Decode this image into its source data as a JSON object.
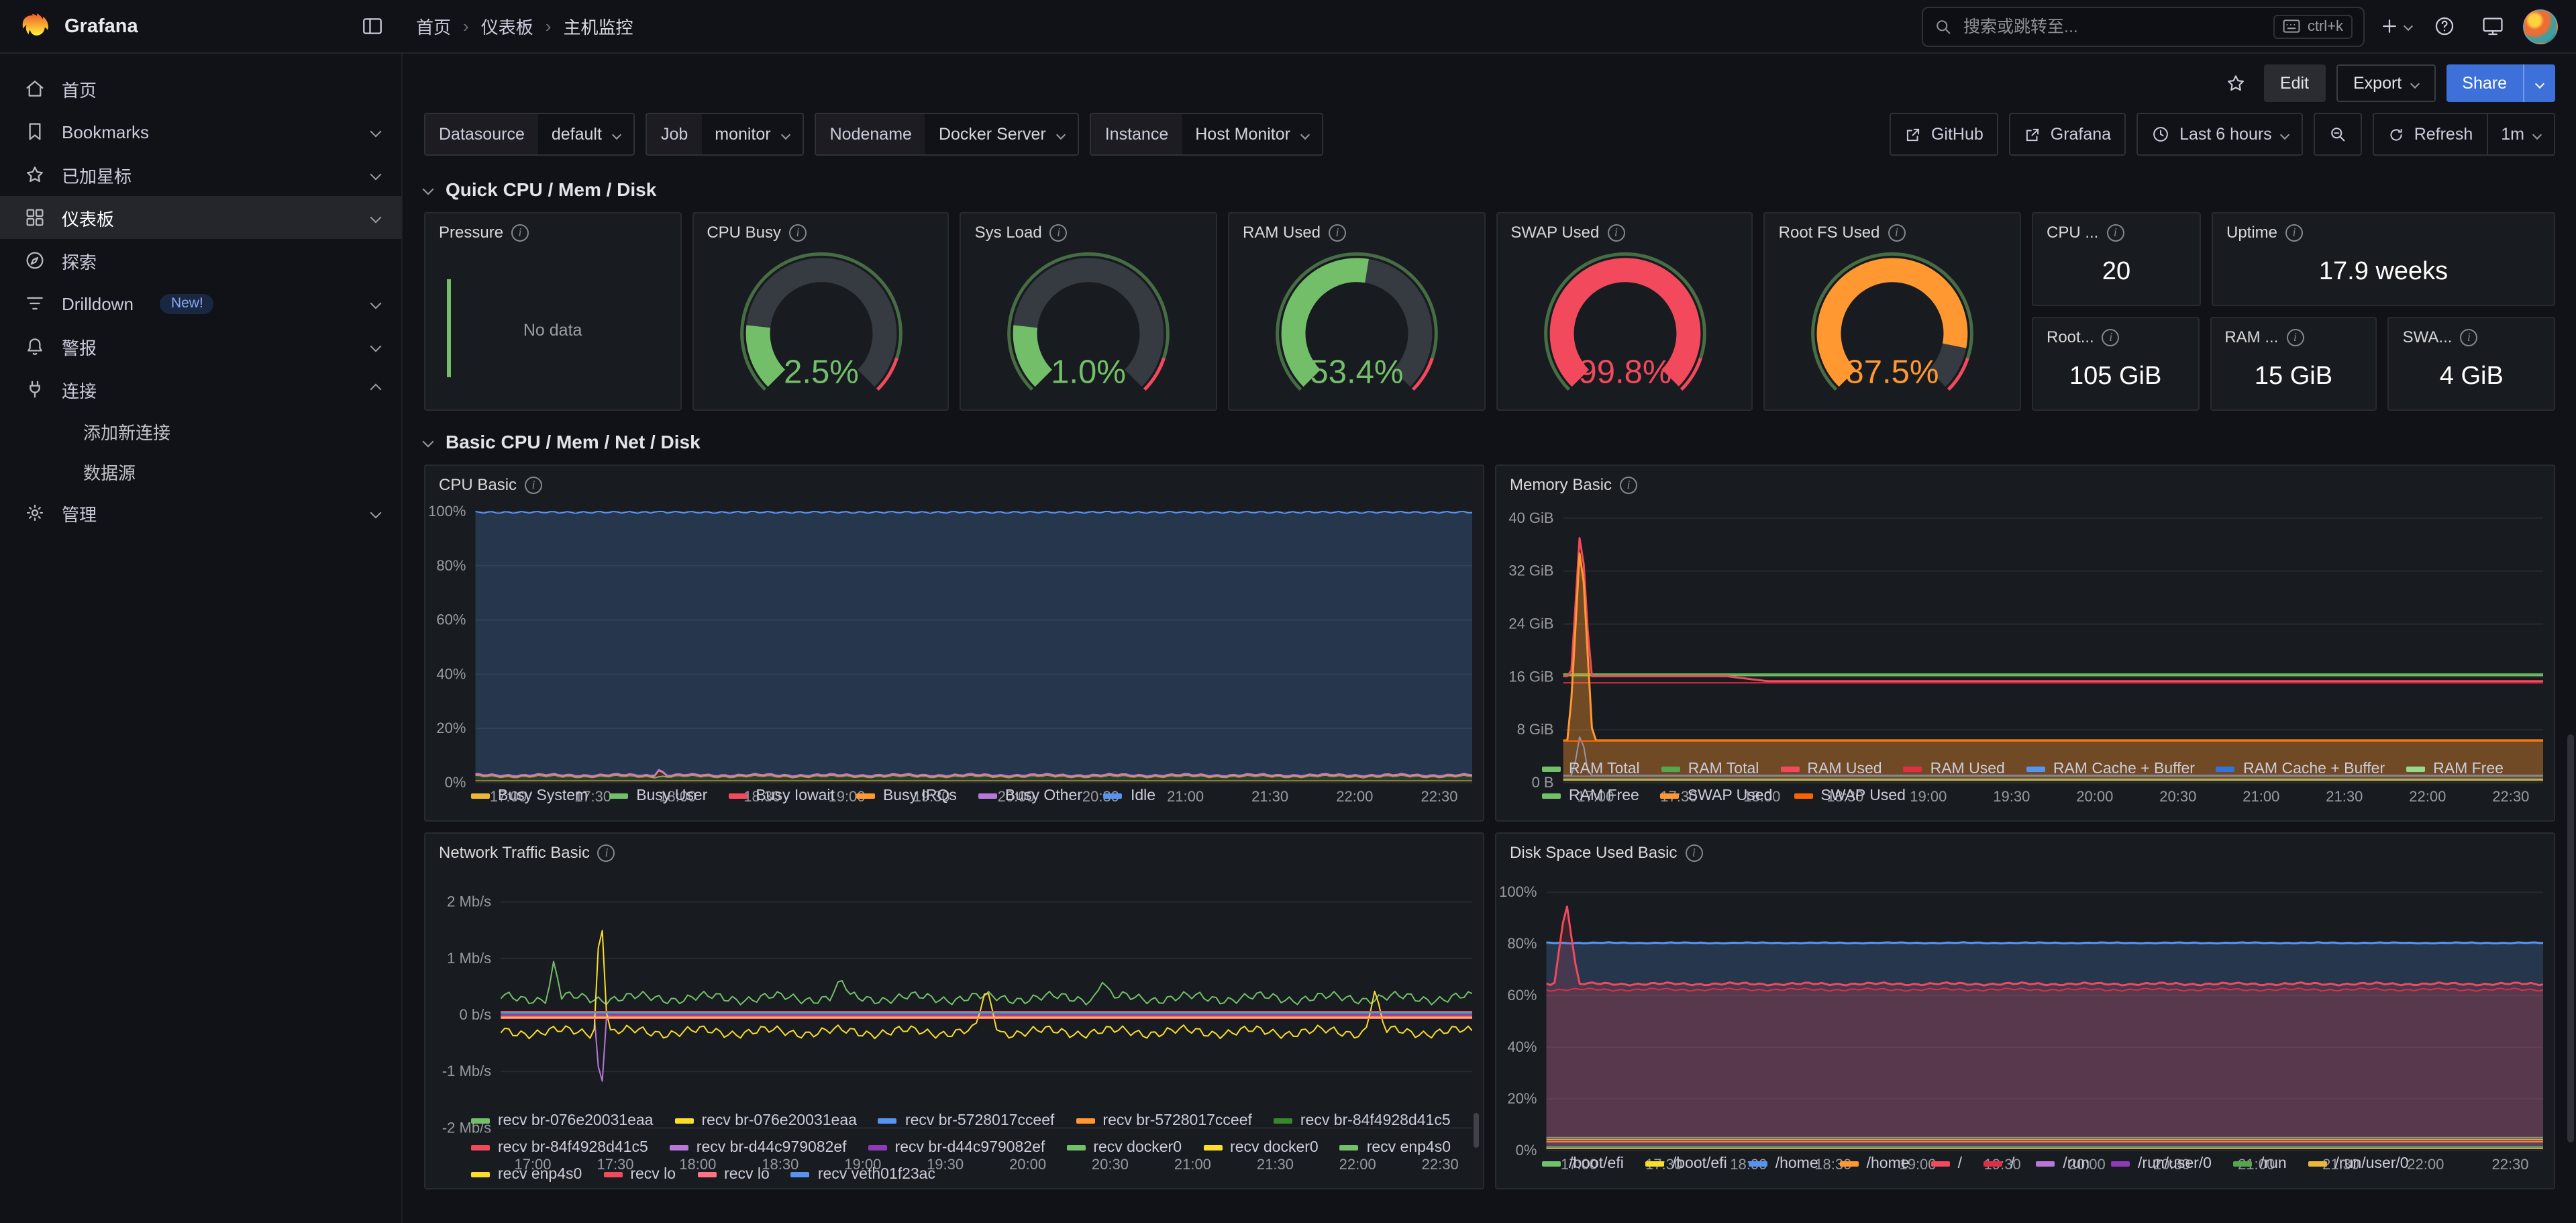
{
  "colors": {
    "primary": "#3D71D9",
    "bg": "#111217",
    "panel": "#181b1f",
    "text": "#ccccdc",
    "green": "#73BF69",
    "red": "#F2495C",
    "orange": "#FF9830",
    "blue": "#5794F2",
    "yellow": "#FADE2A",
    "purple": "#B877D9"
  },
  "topnav": {
    "brand": "Grafana",
    "breadcrumbs": [
      "首页",
      "仪表板",
      "主机监控"
    ],
    "search": {
      "placeholder": "搜索或跳转至...",
      "shortcut": "ctrl+k"
    }
  },
  "sidebar": {
    "items": [
      {
        "label": "首页"
      },
      {
        "label": "Bookmarks"
      },
      {
        "label": "已加星标"
      },
      {
        "label": "仪表板"
      },
      {
        "label": "探索"
      },
      {
        "label": "Drilldown",
        "badge": "New!"
      },
      {
        "label": "警报"
      },
      {
        "label": "连接",
        "children": [
          {
            "label": "添加新连接"
          },
          {
            "label": "数据源"
          }
        ]
      },
      {
        "label": "管理"
      }
    ]
  },
  "page": {
    "edit_label": "Edit",
    "export_label": "Export",
    "share_label": "Share"
  },
  "controls": {
    "variables": [
      {
        "label": "Datasource",
        "value": "default"
      },
      {
        "label": "Job",
        "value": "monitor"
      },
      {
        "label": "Nodename",
        "value": "Docker Server"
      },
      {
        "label": "Instance",
        "value": "Host Monitor"
      }
    ],
    "link_github": "GitHub",
    "link_grafana": "Grafana",
    "time_range": "Last 6 hours",
    "refresh_label": "Refresh",
    "refresh_interval": "1m"
  },
  "rows": [
    {
      "title": "Quick CPU / Mem / Disk"
    },
    {
      "title": "Basic CPU / Mem / Net / Disk"
    }
  ],
  "quick": {
    "pressure": {
      "title": "Pressure",
      "no_data": "No data"
    },
    "gauges": [
      {
        "title": "CPU Busy",
        "value": "2.5%",
        "pct": 2.5,
        "color": "#73BF69"
      },
      {
        "title": "Sys Load",
        "value": "1.0%",
        "pct": 1.0,
        "color": "#73BF69"
      },
      {
        "title": "RAM Used",
        "value": "53.4%",
        "pct": 53.4,
        "color": "#73BF69"
      },
      {
        "title": "SWAP Used",
        "value": "99.8%",
        "pct": 99.8,
        "color": "#F2495C"
      },
      {
        "title": "Root FS Used",
        "value": "87.5%",
        "pct": 87.5,
        "color": "#FF9830"
      }
    ],
    "stats": [
      {
        "title": "CPU ...",
        "value": "20"
      },
      {
        "title": "Uptime",
        "value": "17.9 weeks"
      },
      {
        "title": "Root...",
        "value": "105 GiB"
      },
      {
        "title": "RAM ...",
        "value": "15 GiB"
      },
      {
        "title": "SWA...",
        "value": "4 GiB"
      }
    ]
  },
  "chart_data": [
    {
      "id": "cpu-basic",
      "title": "CPU Basic",
      "type": "area",
      "stacked": true,
      "y_min": 0,
      "y_max": 100,
      "fill": 0.22,
      "y_ticks": [
        {
          "v": 0,
          "l": "0%"
        },
        {
          "v": 20,
          "l": "20%"
        },
        {
          "v": 40,
          "l": "40%"
        },
        {
          "v": 60,
          "l": "60%"
        },
        {
          "v": 80,
          "l": "80%"
        },
        {
          "v": 100,
          "l": "100%"
        }
      ],
      "x_ticks": [
        "17:00",
        "17:30",
        "18:00",
        "18:30",
        "19:00",
        "19:30",
        "20:00",
        "20:30",
        "21:00",
        "21:30",
        "22:00",
        "22:30"
      ],
      "series": [
        {
          "name": "Busy System",
          "color": "#EAB839",
          "const": 0.6
        },
        {
          "name": "Busy User",
          "color": "#73BF69",
          "const": 1.7,
          "noise": 0.5
        },
        {
          "name": "Busy Iowait",
          "color": "#F2495C",
          "const": 0.2,
          "spikes": [
            {
              "at": 0.185,
              "v": 2.6,
              "w": 0.006
            }
          ]
        },
        {
          "name": "Busy IRQs",
          "color": "#FF9830",
          "const": 0.15
        },
        {
          "name": "Busy Other",
          "color": "#B877D9",
          "const": 0.25
        },
        {
          "name": "Idle",
          "color": "#5794F2",
          "const": 96.8,
          "noise": 0.4
        }
      ]
    },
    {
      "id": "memory-basic",
      "title": "Memory Basic",
      "type": "line",
      "y_min": 0,
      "y_max": 41,
      "y_ticks": [
        {
          "v": 0,
          "l": "0 B"
        },
        {
          "v": 8,
          "l": "8 GiB"
        },
        {
          "v": 16,
          "l": "16 GiB"
        },
        {
          "v": 24,
          "l": "24 GiB"
        },
        {
          "v": 32,
          "l": "32 GiB"
        },
        {
          "v": 40,
          "l": "40 GiB"
        }
      ],
      "x_ticks": [
        "17:00",
        "17:30",
        "18:00",
        "18:30",
        "19:00",
        "19:30",
        "20:00",
        "20:30",
        "21:00",
        "21:30",
        "22:00",
        "22:30"
      ],
      "series": [
        {
          "name": "RAM Total",
          "color": "#73BF69",
          "width": 2,
          "const": 16.3
        },
        {
          "name": "RAM Total",
          "color": "#56A64B",
          "const": 16.45
        },
        {
          "name": "RAM Used",
          "color": "#F2495C",
          "width": 1.5,
          "values": [
            16.1,
            16.1,
            16.1,
            16.1,
            16.1,
            15.35,
            15.35,
            15.35,
            15.35,
            15.35,
            15.35,
            15.35,
            15.35,
            15.35,
            15.35,
            15.35,
            15.35,
            15.35,
            15.35,
            15.35,
            15.35,
            15.35,
            15.35,
            15.35,
            15.35
          ],
          "spikes": [
            {
              "at": 0.018,
              "v": 40,
              "w": 0.01
            }
          ]
        },
        {
          "name": "RAM Used",
          "color": "#E02F44",
          "const": 15.1
        },
        {
          "name": "RAM Cache + Buffer",
          "color": "#5794F2",
          "const": 1.1,
          "spikes": [
            {
              "at": 0.018,
              "v": 8,
              "w": 0.008
            }
          ]
        },
        {
          "name": "RAM Cache + Buffer",
          "color": "#3274D9",
          "const": 1.0
        },
        {
          "name": "RAM Free",
          "color": "#96D98D",
          "const": 0.5
        },
        {
          "name": "RAM Free",
          "color": "#73BF69",
          "const": 0.4
        },
        {
          "name": "SWAP Used",
          "color": "#FF9830",
          "width": 1.5,
          "fill": 0.38,
          "const": 6.4,
          "spikes": [
            {
              "at": 0.018,
              "v": 38,
              "w": 0.012
            }
          ]
        },
        {
          "name": "SWAP Used",
          "color": "#FA6400",
          "const": 6.3
        }
      ]
    },
    {
      "id": "network-basic",
      "title": "Network Traffic Basic",
      "type": "line",
      "y_min": -2.4,
      "y_max": 2.4,
      "y_ticks": [
        {
          "v": -2,
          "l": "-2 Mb/s"
        },
        {
          "v": -1,
          "l": "-1 Mb/s"
        },
        {
          "v": 0,
          "l": "0 b/s"
        },
        {
          "v": 1,
          "l": "1 Mb/s"
        },
        {
          "v": 2,
          "l": "2 Mb/s"
        }
      ],
      "x_ticks": [
        "17:00",
        "17:30",
        "18:00",
        "18:30",
        "19:00",
        "19:30",
        "20:00",
        "20:30",
        "21:00",
        "21:30",
        "22:00",
        "22:30"
      ],
      "series": [
        {
          "name": "recv br-076e20031eaa",
          "color": "#73BF69",
          "const": 0.03
        },
        {
          "name": "recv br-076e20031eaa",
          "color": "#FADE2A",
          "const": -0.03
        },
        {
          "name": "recv br-5728017cceef",
          "color": "#5794F2",
          "const": 0.02
        },
        {
          "name": "recv br-5728017cceef",
          "color": "#FF9830",
          "const": -0.02
        },
        {
          "name": "recv br-84f4928d41c5",
          "color": "#37872D",
          "const": 0.02
        },
        {
          "name": "recv br-84f4928d41c5",
          "color": "#F2495C",
          "const": -0.02
        },
        {
          "name": "recv br-d44c979082ef",
          "color": "#B877D9",
          "const": 0,
          "spikes": [
            {
              "at": 0.103,
              "v": -1.6,
              "w": 0.006
            }
          ]
        },
        {
          "name": "recv br-d44c979082ef",
          "color": "#8F3BB8",
          "const": 0
        },
        {
          "name": "recv docker0",
          "color": "#73BF69",
          "const": 0.05
        },
        {
          "name": "recv docker0",
          "color": "#FADE2A",
          "const": -0.05
        },
        {
          "name": "recv enp4s0",
          "color": "#73BF69",
          "const": 0.3,
          "noise": 0.12,
          "spikes": [
            {
              "at": 0.055,
              "v": 1.0,
              "w": 0.007
            },
            {
              "at": 0.35,
              "v": 0.65,
              "w": 0.01
            },
            {
              "at": 0.62,
              "v": 0.6,
              "w": 0.01
            }
          ]
        },
        {
          "name": "recv enp4s0",
          "color": "#FADE2A",
          "const": -0.3,
          "noise": 0.12,
          "spikes": [
            {
              "at": 0.103,
              "v": 2.05,
              "w": 0.007
            },
            {
              "at": 0.5,
              "v": 0.5,
              "w": 0.012
            },
            {
              "at": 0.9,
              "v": 0.45,
              "w": 0.01
            }
          ]
        },
        {
          "name": "recv lo",
          "color": "#F2495C",
          "const": 0.06
        },
        {
          "name": "recv lo",
          "color": "#FF7383",
          "const": -0.06
        },
        {
          "name": "recv veth01f23ac",
          "color": "#5794F2",
          "const": 0.04
        }
      ]
    },
    {
      "id": "disk-basic",
      "title": "Disk Space Used Basic",
      "type": "line",
      "y_min": 0,
      "y_max": 105,
      "y_ticks": [
        {
          "v": 0,
          "l": "0%"
        },
        {
          "v": 20,
          "l": "20%"
        },
        {
          "v": 40,
          "l": "40%"
        },
        {
          "v": 60,
          "l": "60%"
        },
        {
          "v": 80,
          "l": "80%"
        },
        {
          "v": 100,
          "l": "100%"
        }
      ],
      "x_ticks": [
        "17:00",
        "17:30",
        "18:00",
        "18:30",
        "19:00",
        "19:30",
        "20:00",
        "20:30",
        "21:00",
        "21:30",
        "22:00",
        "22:30"
      ],
      "series": [
        {
          "name": "/boot/efi",
          "color": "#73BF69",
          "const": 5,
          "fill": 0.12
        },
        {
          "name": "/boot/efi",
          "color": "#FADE2A",
          "const": 4.2
        },
        {
          "name": "/home",
          "color": "#5794F2",
          "width": 1.5,
          "const": 80.4,
          "noise": 0.2,
          "fill": 0.22
        },
        {
          "name": "/home",
          "color": "#FF9830",
          "const": 3.4
        },
        {
          "name": "/",
          "color": "#F2495C",
          "width": 1.5,
          "const": 64.5,
          "noise": 0.6,
          "fill": 0.16,
          "spikes": [
            {
              "at": 0.02,
              "v": 97,
              "w": 0.012
            }
          ]
        },
        {
          "name": "/",
          "color": "#E02F44",
          "const": 62.3,
          "noise": 0.6,
          "fill": 0.12
        },
        {
          "name": "/run",
          "color": "#B877D9",
          "const": 1.4
        },
        {
          "name": "/run/user/0",
          "color": "#8F3BB8",
          "const": 0.7
        },
        {
          "name": "/run",
          "color": "#56A64B",
          "const": 1.2
        },
        {
          "name": "/run/user/0",
          "color": "#EAB839",
          "const": 0.6
        }
      ]
    }
  ]
}
